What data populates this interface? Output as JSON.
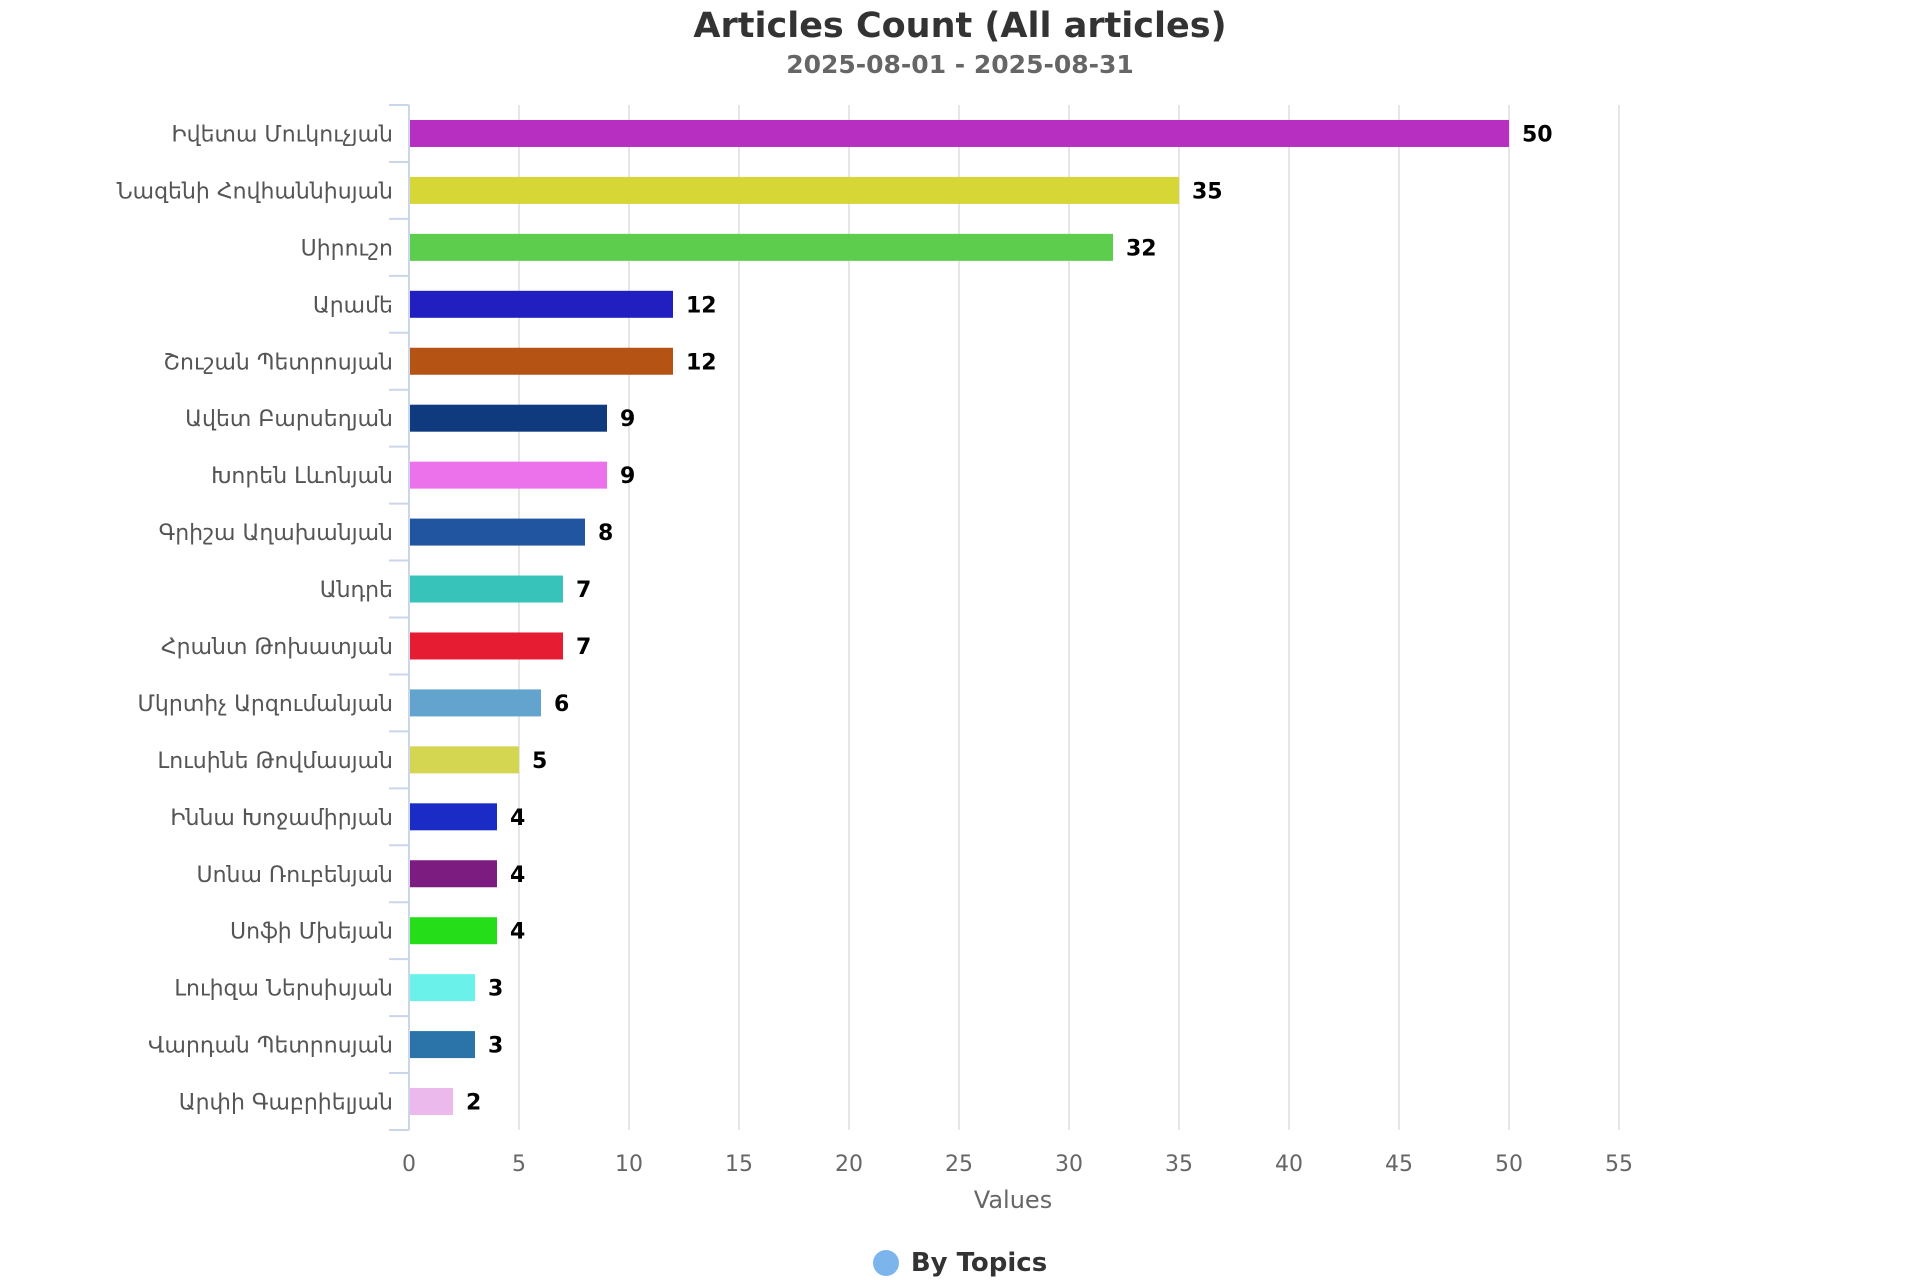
{
  "chart_data": {
    "type": "bar",
    "orientation": "horizontal",
    "title": "Articles Count (All articles)",
    "subtitle": "2025-08-01 - 2025-08-31",
    "xlabel": "Values",
    "ylabel": "",
    "xlim": [
      0,
      55
    ],
    "ticks": [
      "0",
      "5",
      "10",
      "15",
      "20",
      "25",
      "30",
      "35",
      "40",
      "45",
      "50",
      "55"
    ],
    "grid": true,
    "legend_position": "bottom-center",
    "legend": [
      {
        "name": "By Topics",
        "color": "#7cb5ec"
      }
    ],
    "categories": [
      "Իվետա Մուկուչյան",
      "Նազենի Հովհաննիսյան",
      "Սիրուշո",
      "Արամե",
      "Շուշան Պետրոսյան",
      "Ավետ Բարսեղյան",
      "Խորեն Լևոնյան",
      "Գրիշա Աղախանյան",
      "Անդրե",
      "Հրանտ Թոխատյան",
      "Մկրտիչ Արզումանյան",
      "Լուսինե Թովմասյան",
      "Իննա Խոջամիրյան",
      "Սոնա Ռուբենյան",
      "Սոֆի Մխեյան",
      "Լուիզա Ներսիսյան",
      "Վարդան Պետրոսյան",
      "Արփի Գաբրիելյան"
    ],
    "values": [
      50,
      35,
      32,
      12,
      12,
      9,
      9,
      8,
      7,
      7,
      6,
      5,
      4,
      4,
      4,
      3,
      3,
      2
    ],
    "colors": [
      "#b72fc1",
      "#d6d637",
      "#5dcd4d",
      "#221fc0",
      "#b45313",
      "#103a7e",
      "#ec72ec",
      "#22559f",
      "#37c3b9",
      "#e61d32",
      "#62a4cd",
      "#d4d551",
      "#1b2bc5",
      "#7d1c80",
      "#25de19",
      "#6af2ea",
      "#2b74aa",
      "#ebb9eb"
    ]
  }
}
